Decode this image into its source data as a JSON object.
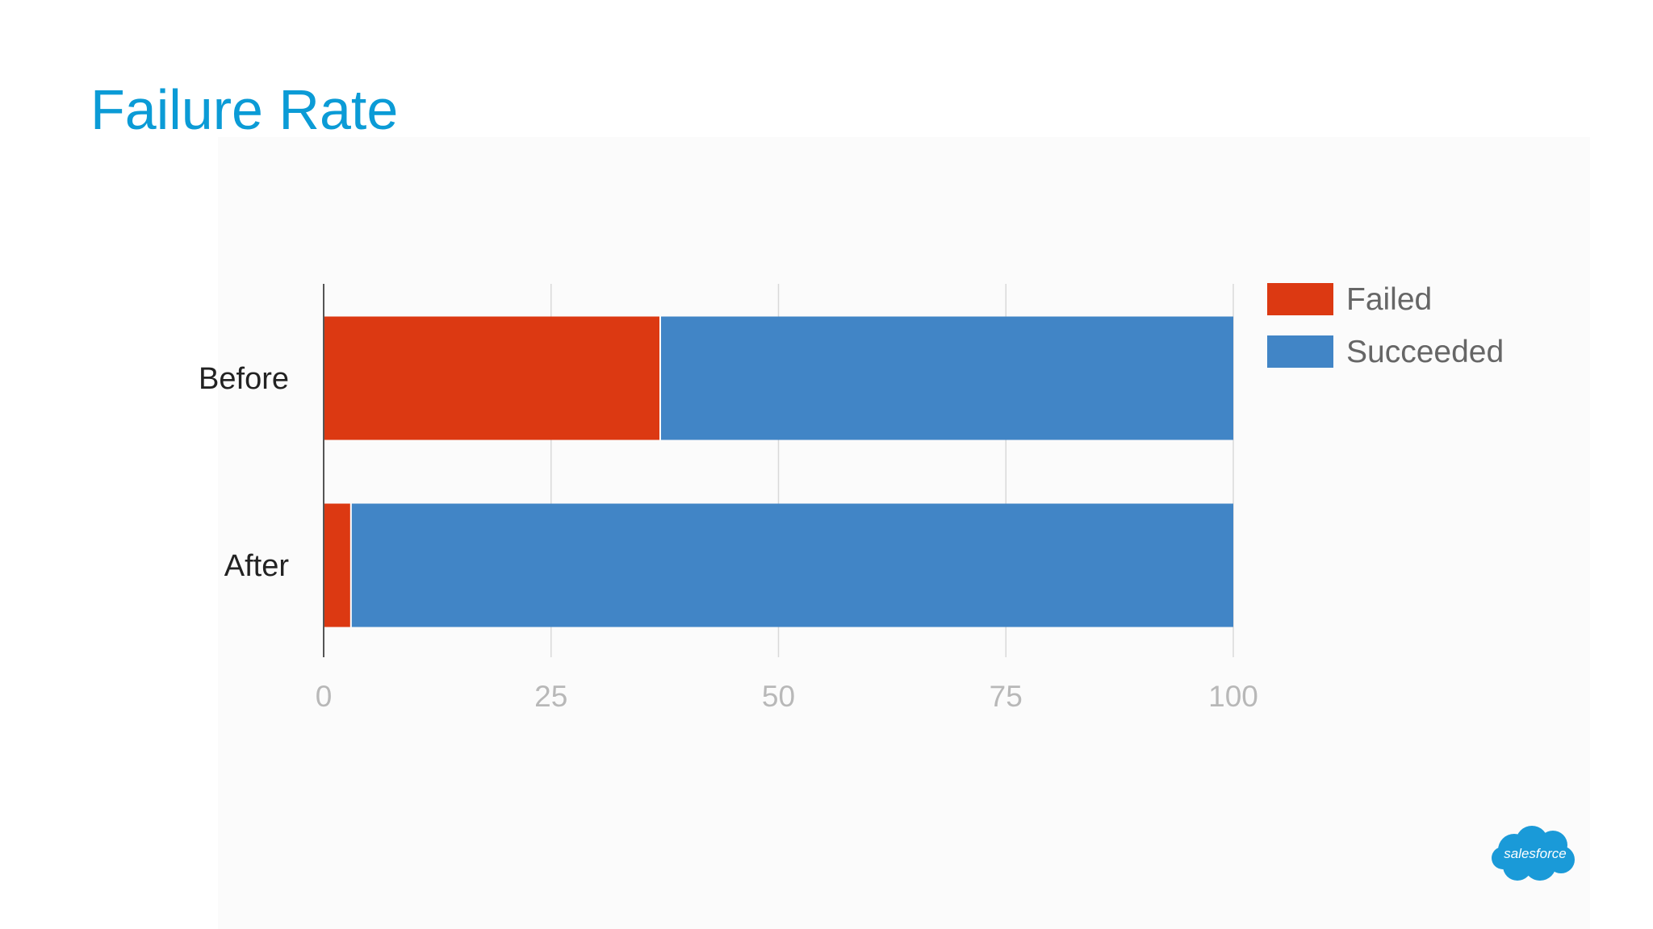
{
  "slide": {
    "title": "Failure Rate",
    "logo_text": "salesforce"
  },
  "colors": {
    "title": "#0b9bd6",
    "failed": "#dc3912",
    "succeeded": "#4185c6",
    "logo": "#1a9ad8"
  },
  "chart_data": {
    "type": "bar",
    "orientation": "horizontal",
    "stacked": true,
    "categories": [
      "Before",
      "After"
    ],
    "series": [
      {
        "name": "Failed",
        "values": [
          37,
          3
        ],
        "color": "#dc3912"
      },
      {
        "name": "Succeeded",
        "values": [
          63,
          97
        ],
        "color": "#4185c6"
      }
    ],
    "xlim": [
      0,
      100
    ],
    "xticks": [
      "0",
      "25",
      "50",
      "75",
      "100"
    ],
    "grid": true,
    "legend": "right"
  }
}
